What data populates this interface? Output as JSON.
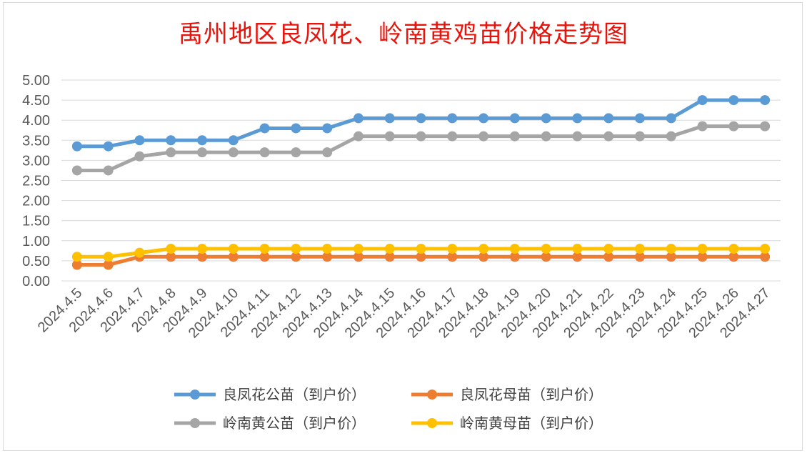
{
  "chart_data": {
    "type": "line",
    "title": "禹州地区良凤花、岭南黄鸡苗价格走势图",
    "xlabel": "",
    "ylabel": "",
    "ylim": [
      0,
      5
    ],
    "ytick_step": 0.5,
    "grid": true,
    "legend_position": "bottom",
    "categories": [
      "2024.4.5",
      "2024.4.6",
      "2024.4.7",
      "2024.4.8",
      "2024.4.9",
      "2024.4.10",
      "2024.4.11",
      "2024.4.12",
      "2024.4.13",
      "2024.4.14",
      "2024.4.15",
      "2024.4.16",
      "2024.4.17",
      "2024.4.18",
      "2024.4.19",
      "2024.4.20",
      "2024.4.21",
      "2024.4.22",
      "2024.4.23",
      "2024.4.24",
      "2024.4.25",
      "2024.4.26",
      "2024.4.27"
    ],
    "series": [
      {
        "name": "良凤花公苗（到户价）",
        "color": "#5b9bd5",
        "values": [
          3.35,
          3.35,
          3.5,
          3.5,
          3.5,
          3.5,
          3.8,
          3.8,
          3.8,
          4.05,
          4.05,
          4.05,
          4.05,
          4.05,
          4.05,
          4.05,
          4.05,
          4.05,
          4.05,
          4.05,
          4.5,
          4.5,
          4.5
        ]
      },
      {
        "name": "良凤花母苗（到户价）",
        "color": "#ed7d31",
        "values": [
          0.4,
          0.4,
          0.6,
          0.6,
          0.6,
          0.6,
          0.6,
          0.6,
          0.6,
          0.6,
          0.6,
          0.6,
          0.6,
          0.6,
          0.6,
          0.6,
          0.6,
          0.6,
          0.6,
          0.6,
          0.6,
          0.6,
          0.6
        ]
      },
      {
        "name": "岭南黄公苗（到户价）",
        "color": "#a5a5a5",
        "values": [
          2.75,
          2.75,
          3.1,
          3.2,
          3.2,
          3.2,
          3.2,
          3.2,
          3.2,
          3.6,
          3.6,
          3.6,
          3.6,
          3.6,
          3.6,
          3.6,
          3.6,
          3.6,
          3.6,
          3.6,
          3.85,
          3.85,
          3.85
        ]
      },
      {
        "name": "岭南黄母苗（到户价）",
        "color": "#ffc000",
        "values": [
          0.6,
          0.6,
          0.7,
          0.8,
          0.8,
          0.8,
          0.8,
          0.8,
          0.8,
          0.8,
          0.8,
          0.8,
          0.8,
          0.8,
          0.8,
          0.8,
          0.8,
          0.8,
          0.8,
          0.8,
          0.8,
          0.8,
          0.8
        ]
      }
    ]
  }
}
